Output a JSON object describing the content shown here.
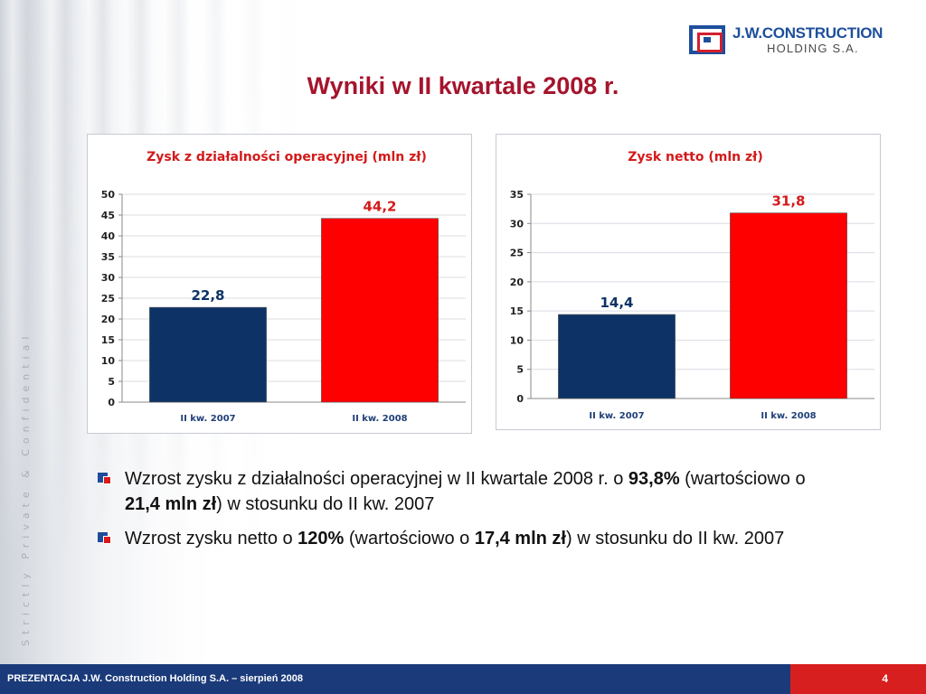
{
  "slide": {
    "title": "Wyniki w II kwartale 2008 r.",
    "side_text": "Strictly Private & Confidential"
  },
  "logo": {
    "line1": "J.W.CONSTRUCTION",
    "line2": "HOLDING S.A.",
    "colors": {
      "blue": "#1d4f9c",
      "red": "#d2202f"
    }
  },
  "chart_data": [
    {
      "type": "bar",
      "title": "Zysk z działalności operacyjnej (mln zł)",
      "categories": [
        "II kw. 2007",
        "II kw. 2008"
      ],
      "values": [
        22.8,
        44.2
      ],
      "data_labels": [
        "22,8",
        "44,2"
      ],
      "bar_colors": [
        "#0d3366",
        "#ff0000"
      ],
      "label_colors": [
        "#0d3366",
        "#d31a1a"
      ],
      "ylim": [
        0,
        50
      ],
      "yticks": [
        0,
        5,
        10,
        15,
        20,
        25,
        30,
        35,
        40,
        45,
        50
      ],
      "grid": true,
      "legend": "none"
    },
    {
      "type": "bar",
      "title": "Zysk netto (mln zł)",
      "categories": [
        "II kw. 2007",
        "II kw. 2008"
      ],
      "values": [
        14.4,
        31.8
      ],
      "data_labels": [
        "14,4",
        "31,8"
      ],
      "bar_colors": [
        "#0d3366",
        "#ff0000"
      ],
      "label_colors": [
        "#0d3366",
        "#d31a1a"
      ],
      "ylim": [
        0,
        35
      ],
      "yticks": [
        0,
        5,
        10,
        15,
        20,
        25,
        30,
        35
      ],
      "grid": true,
      "legend": "none"
    }
  ],
  "bullets": [
    {
      "parts": [
        {
          "text": "Wzrost zysku z działalności operacyjnej w II kwartale 2008 r. o ",
          "bold": false
        },
        {
          "text": "93,8%",
          "bold": true
        },
        {
          "text": " (wartościowo o ",
          "bold": false
        },
        {
          "text": "21,4 mln zł",
          "bold": true
        },
        {
          "text": ") w stosunku do II kw. 2007",
          "bold": false
        }
      ]
    },
    {
      "parts": [
        {
          "text": "Wzrost zysku netto o ",
          "bold": false
        },
        {
          "text": "120%",
          "bold": true
        },
        {
          "text": " (wartościowo o ",
          "bold": false
        },
        {
          "text": "17,4 mln zł",
          "bold": true
        },
        {
          "text": ") w stosunku do II kw. 2007",
          "bold": false
        }
      ]
    }
  ],
  "footer": {
    "left_text": "PREZENTACJA J.W. Construction Holding S.A. – sierpień 2008",
    "page_number": "4",
    "colors": {
      "left_bg": "#1a3a7a",
      "right_bg": "#d81f1f"
    }
  }
}
